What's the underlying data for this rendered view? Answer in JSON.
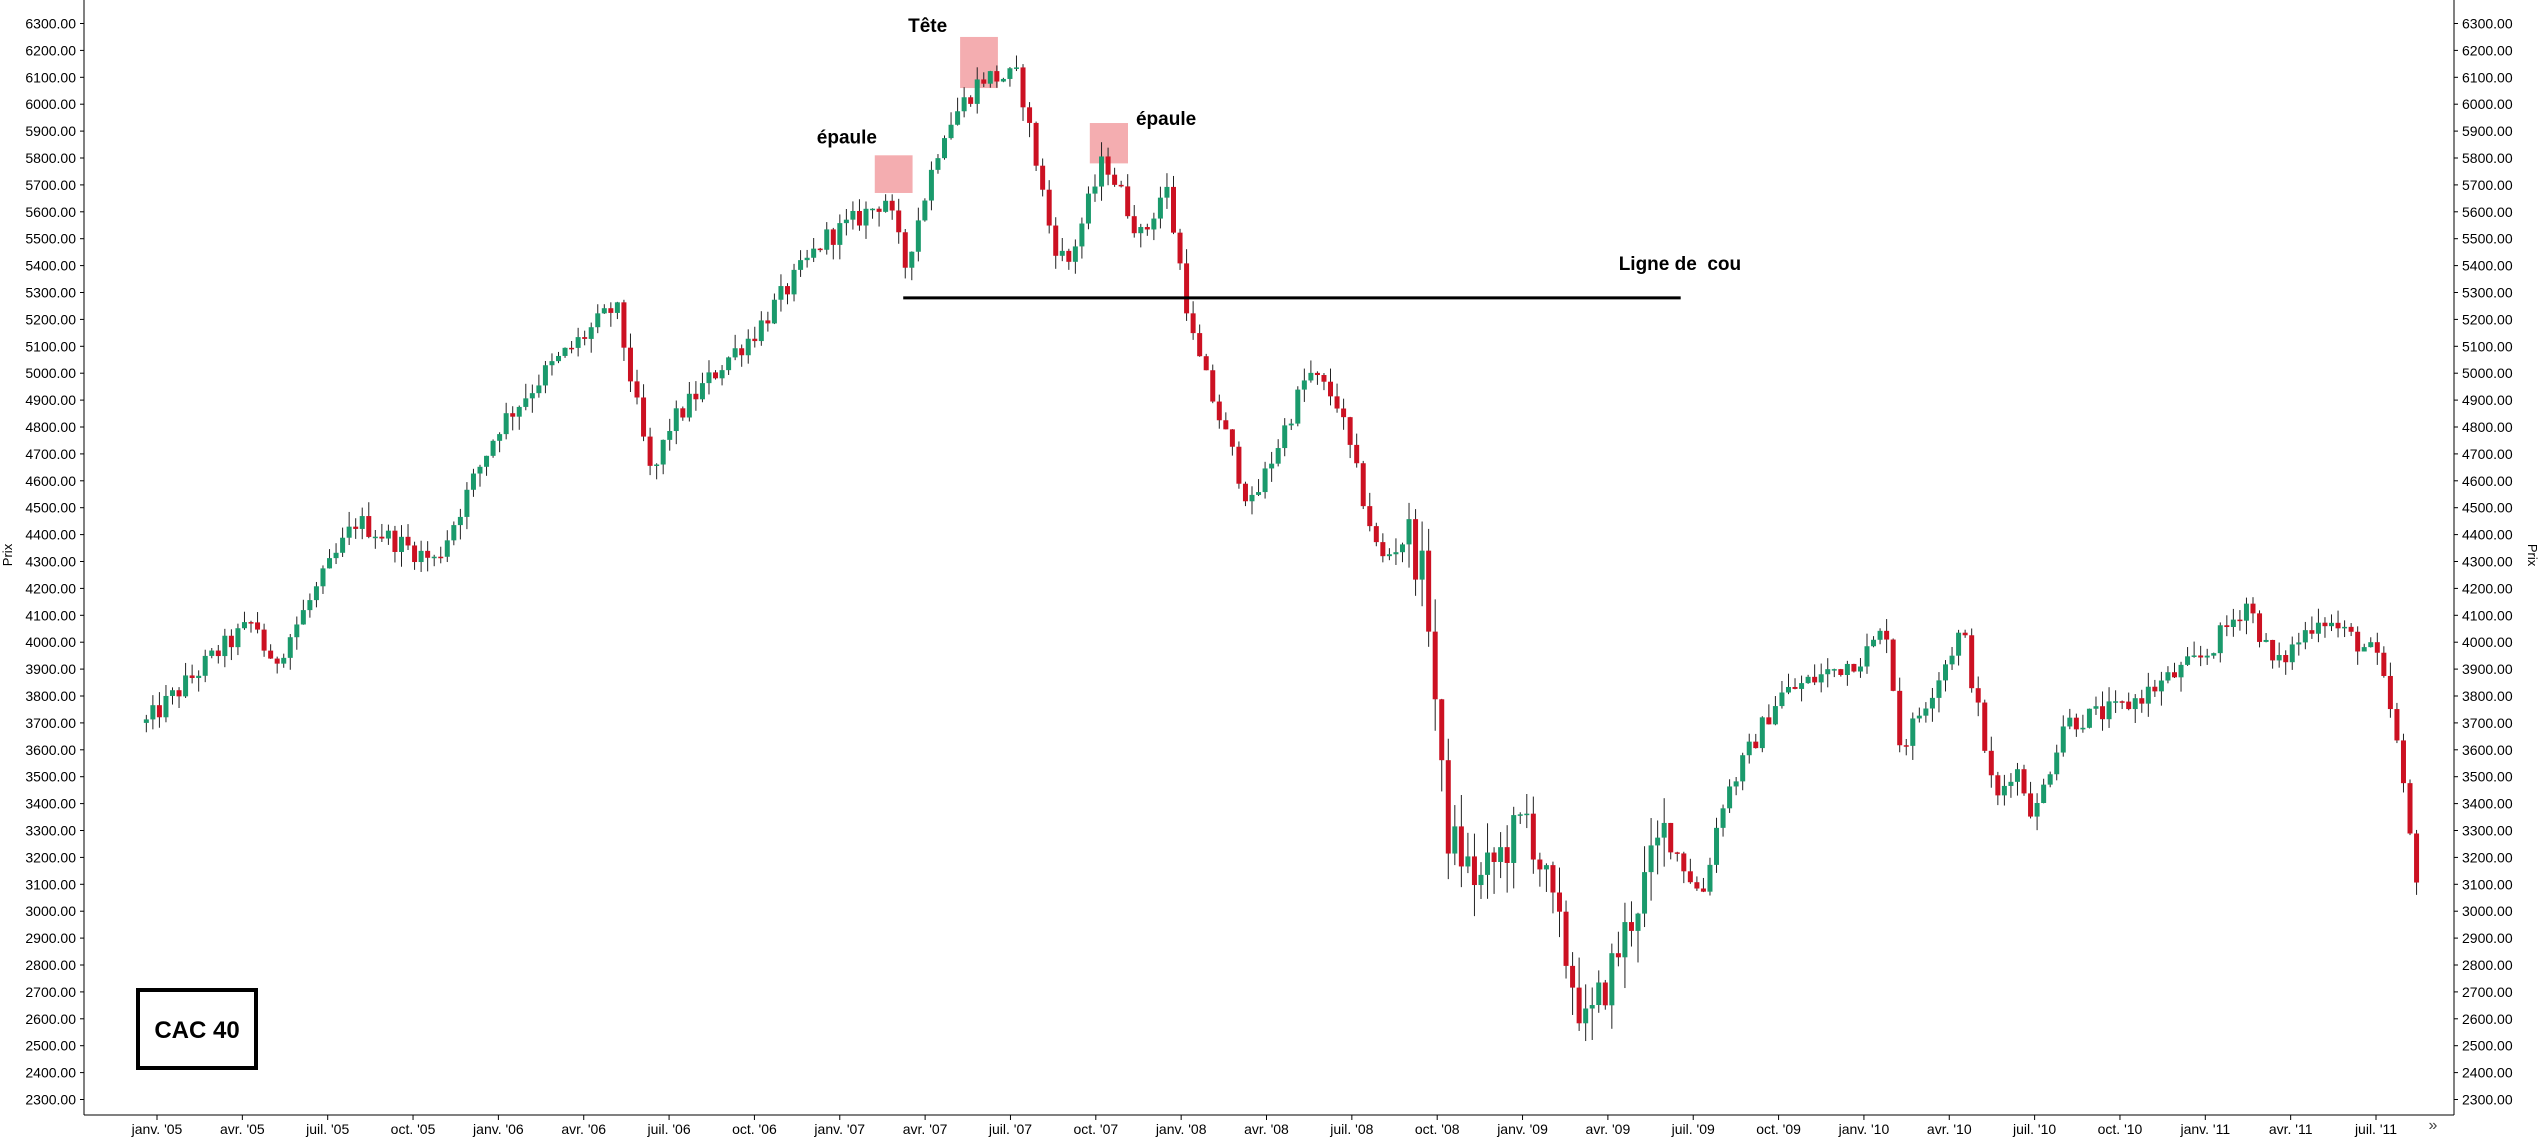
{
  "chart_data": {
    "type": "candlestick",
    "title": "",
    "ylabel": "Prix",
    "ylim": [
      2250,
      6350
    ],
    "y_ticks": [
      "2300.00",
      "2400.00",
      "2500.00",
      "2600.00",
      "2700.00",
      "2800.00",
      "2900.00",
      "3000.00",
      "3100.00",
      "3200.00",
      "3300.00",
      "3400.00",
      "3500.00",
      "3600.00",
      "3700.00",
      "3800.00",
      "3900.00",
      "4000.00",
      "4100.00",
      "4200.00",
      "4300.00",
      "4400.00",
      "4500.00",
      "4600.00",
      "4700.00",
      "4800.00",
      "4900.00",
      "5000.00",
      "5100.00",
      "5200.00",
      "5300.00",
      "5400.00",
      "5500.00",
      "5600.00",
      "5700.00",
      "5800.00",
      "5900.00",
      "6000.00",
      "6100.00",
      "6200.00",
      "6300.00"
    ],
    "x_ticks": [
      "janv. '05",
      "avr. '05",
      "juil. '05",
      "oct. '05",
      "janv. '06",
      "avr. '06",
      "juil. '06",
      "oct. '06",
      "janv. '07",
      "avr. '07",
      "juil. '07",
      "oct. '07",
      "janv. '08",
      "avr. '08",
      "juil. '08",
      "oct. '08",
      "janv. '09",
      "avr. '09",
      "juil. '09",
      "oct. '09",
      "janv. '10",
      "avr. '10",
      "juil. '10",
      "oct. '10",
      "janv. '11",
      "avr. '11",
      "juil. '11"
    ],
    "x_start": "2004-12",
    "x_end": "2011-08",
    "up_color": "#1a9a6c",
    "down_color": "#cc1122",
    "anchors": [
      [
        "2004-12-20",
        3700
      ],
      [
        "2005-03-01",
        3950
      ],
      [
        "2005-04-15",
        4080
      ],
      [
        "2005-05-01",
        3900
      ],
      [
        "2005-08-01",
        4450
      ],
      [
        "2005-10-25",
        4300
      ],
      [
        "2006-01-01",
        4800
      ],
      [
        "2006-02-20",
        5000
      ],
      [
        "2006-05-05",
        5250
      ],
      [
        "2006-06-13",
        4600
      ],
      [
        "2006-07-01",
        4800
      ],
      [
        "2006-09-01",
        5050
      ],
      [
        "2006-10-01",
        5150
      ],
      [
        "2006-12-15",
        5500
      ],
      [
        "2007-01-10",
        5550
      ],
      [
        "2007-02-20",
        5650
      ],
      [
        "2007-03-10",
        5400
      ],
      [
        "2007-04-20",
        5900
      ],
      [
        "2007-06-01",
        6100
      ],
      [
        "2007-07-10",
        6100
      ],
      [
        "2007-08-15",
        5500
      ],
      [
        "2007-09-01",
        5400
      ],
      [
        "2007-10-10",
        5800
      ],
      [
        "2007-11-20",
        5500
      ],
      [
        "2007-12-15",
        5700
      ],
      [
        "2008-01-15",
        5100
      ],
      [
        "2008-02-15",
        4800
      ],
      [
        "2008-03-15",
        4500
      ],
      [
        "2008-05-15",
        5000
      ],
      [
        "2008-06-15",
        4900
      ],
      [
        "2008-08-01",
        4300
      ],
      [
        "2008-09-01",
        4400
      ],
      [
        "2008-09-20",
        4200
      ],
      [
        "2008-10-10",
        3300
      ],
      [
        "2008-11-15",
        3100
      ],
      [
        "2009-01-06",
        3350
      ],
      [
        "2009-03-09",
        2550
      ],
      [
        "2009-06-01",
        3300
      ],
      [
        "2009-07-10",
        3050
      ],
      [
        "2009-08-01",
        3400
      ],
      [
        "2009-10-01",
        3800
      ],
      [
        "2009-12-31",
        3950
      ],
      [
        "2010-01-25",
        4050
      ],
      [
        "2010-02-10",
        3600
      ],
      [
        "2010-04-15",
        4050
      ],
      [
        "2010-05-20",
        3400
      ],
      [
        "2010-06-10",
        3550
      ],
      [
        "2010-07-01",
        3350
      ],
      [
        "2010-08-01",
        3700
      ],
      [
        "2010-10-01",
        3750
      ],
      [
        "2010-12-31",
        3950
      ],
      [
        "2011-02-15",
        4150
      ],
      [
        "2011-03-15",
        3900
      ],
      [
        "2011-05-01",
        4100
      ],
      [
        "2011-07-01",
        3950
      ],
      [
        "2011-07-20",
        3700
      ],
      [
        "2011-08-10",
        3200
      ],
      [
        "2011-08-20",
        3050
      ]
    ],
    "annotations": {
      "head": "Tête",
      "left_shoulder": "épaule",
      "right_shoulder": "épaule",
      "neckline": "Ligne de  cou",
      "neckline_value": 5280,
      "neckline_from": "2007-03-08",
      "neckline_to": "2009-06-18",
      "zones": [
        {
          "from": "2007-02-08",
          "to": "2007-03-18",
          "high": 5810,
          "low": 5670
        },
        {
          "from": "2007-05-08",
          "to": "2007-06-18",
          "high": 6250,
          "low": 6060
        },
        {
          "from": "2007-09-25",
          "to": "2007-11-05",
          "high": 5930,
          "low": 5780
        }
      ]
    }
  },
  "legend_box": {
    "label": "CAC 40"
  },
  "toolbar": {
    "scroll_arrow": "»"
  }
}
